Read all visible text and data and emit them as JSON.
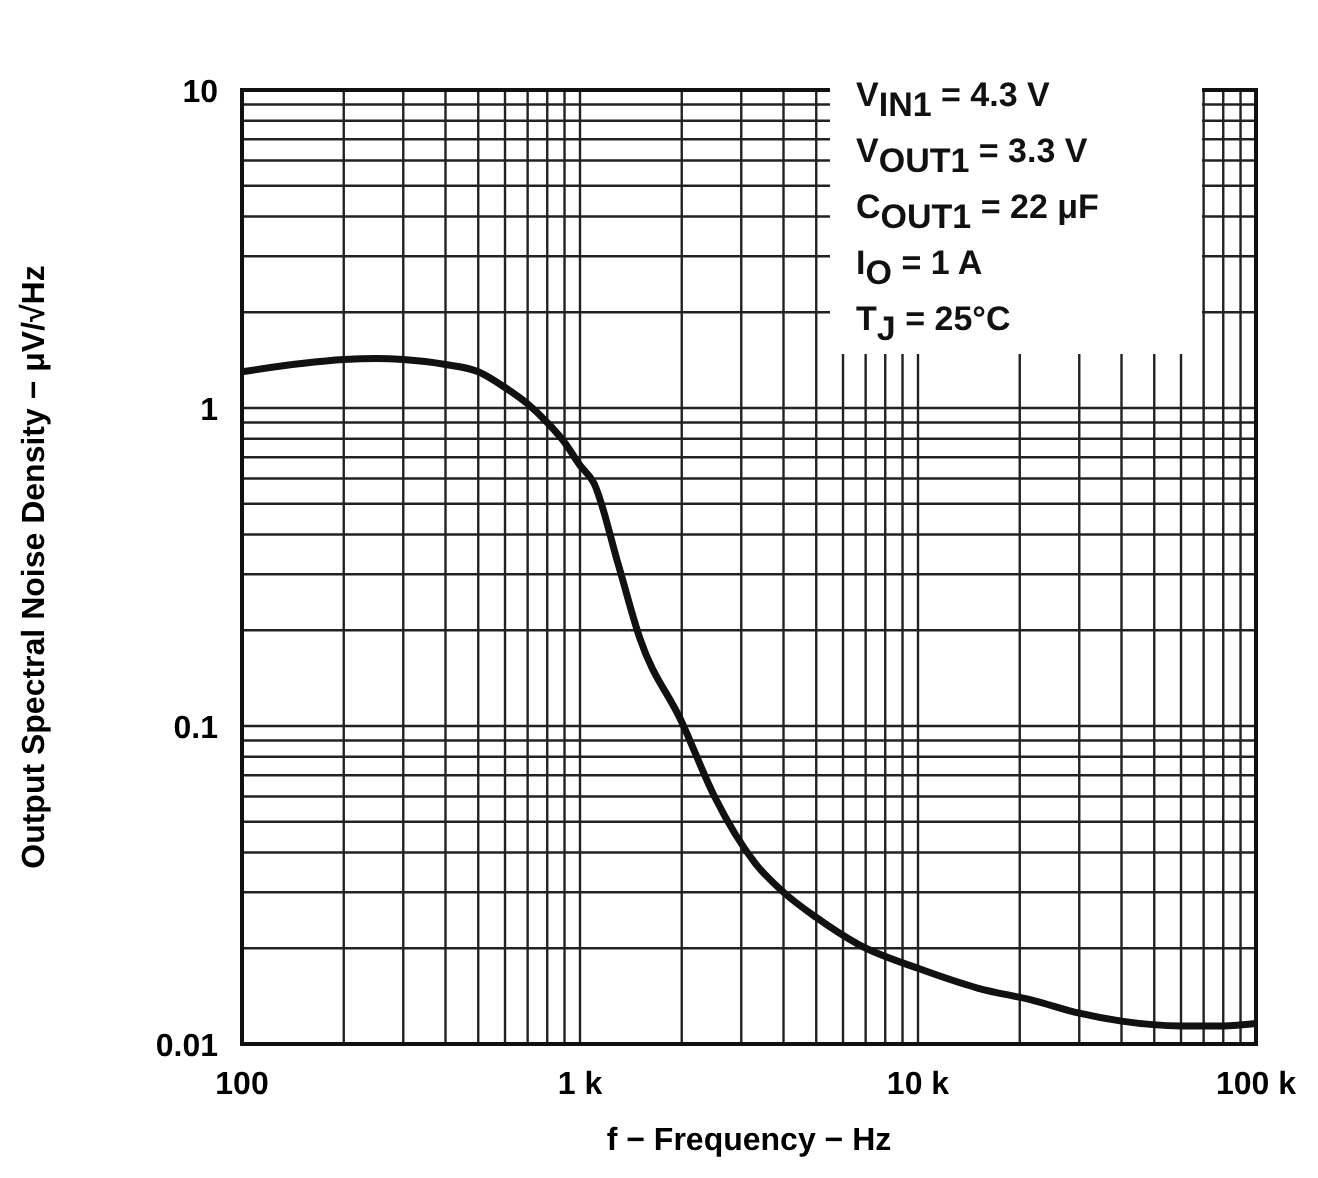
{
  "chart_data": {
    "type": "line",
    "xlabel": "f − Frequency − Hz",
    "ylabel": "Output Spectral Noise Density  − μV/√Hz",
    "log": "xy",
    "grid": true,
    "xlim": [
      100,
      100000
    ],
    "ylim": [
      0.01,
      10
    ],
    "xticks": [
      100,
      {
        "value": 200,
        "label": null
      },
      {
        "value": 300,
        "label": null
      },
      {
        "value": 400,
        "label": null
      },
      {
        "value": 500,
        "label": null
      },
      {
        "value": 600,
        "label": null
      },
      {
        "value": 700,
        "label": null
      },
      {
        "value": 800,
        "label": null
      },
      {
        "value": 900,
        "label": null
      },
      {
        "value": 1000,
        "label": "1 k"
      },
      {
        "value": 2000,
        "label": null
      },
      {
        "value": 3000,
        "label": null
      },
      {
        "value": 4000,
        "label": null
      },
      {
        "value": 5000,
        "label": null
      },
      {
        "value": 6000,
        "label": null
      },
      {
        "value": 7000,
        "label": null
      },
      {
        "value": 8000,
        "label": null
      },
      {
        "value": 9000,
        "label": null
      },
      {
        "value": 10000,
        "label": "10 k"
      },
      {
        "value": 20000,
        "label": null
      },
      {
        "value": 30000,
        "label": null
      },
      {
        "value": 40000,
        "label": null
      },
      {
        "value": 50000,
        "label": null
      },
      {
        "value": 60000,
        "label": null
      },
      {
        "value": 70000,
        "label": null
      },
      {
        "value": 80000,
        "label": null
      },
      {
        "value": 90000,
        "label": null
      },
      {
        "value": 100000,
        "label": "100 k"
      }
    ],
    "yticks": [
      0.01,
      {
        "value": 0.02,
        "label": null
      },
      {
        "value": 0.03,
        "label": null
      },
      {
        "value": 0.04,
        "label": null
      },
      {
        "value": 0.05,
        "label": null
      },
      {
        "value": 0.06,
        "label": null
      },
      {
        "value": 0.07,
        "label": null
      },
      {
        "value": 0.08,
        "label": null
      },
      {
        "value": 0.09,
        "label": null
      },
      0.1,
      {
        "value": 0.2,
        "label": null
      },
      {
        "value": 0.3,
        "label": null
      },
      {
        "value": 0.4,
        "label": null
      },
      {
        "value": 0.5,
        "label": null
      },
      {
        "value": 0.6,
        "label": null
      },
      {
        "value": 0.7,
        "label": null
      },
      {
        "value": 0.8,
        "label": null
      },
      {
        "value": 0.9,
        "label": null
      },
      1,
      {
        "value": 2,
        "label": null
      },
      {
        "value": 3,
        "label": null
      },
      {
        "value": 4,
        "label": null
      },
      {
        "value": 5,
        "label": null
      },
      {
        "value": 6,
        "label": null
      },
      {
        "value": 7,
        "label": null
      },
      {
        "value": 8,
        "label": null
      },
      {
        "value": 9,
        "label": null
      },
      10
    ],
    "x": [
      100,
      150,
      200,
      250,
      300,
      400,
      500,
      600,
      700,
      800,
      900,
      1000,
      1100,
      1300,
      1500,
      2000,
      2500,
      3300,
      4000,
      5000,
      6700,
      10000,
      15000,
      22000,
      30000,
      40000,
      60000,
      80000,
      100000
    ],
    "series": [
      {
        "color": "#111111",
        "values": [
          1.3,
          1.38,
          1.42,
          1.43,
          1.42,
          1.37,
          1.3,
          1.16,
          1.03,
          0.9,
          0.78,
          0.66,
          0.58,
          0.32,
          0.19,
          0.103,
          0.06,
          0.037,
          0.03,
          0.025,
          0.0205,
          0.0173,
          0.015,
          0.0137,
          0.0125,
          0.0118,
          0.0114,
          0.0114,
          0.0116
        ]
      }
    ],
    "annotations": [
      "V$_{IN1}$ = 4.3 V",
      "V$_{OUT1}$ = 3.3 V",
      "C$_{OUT1}$ = 22 μF",
      "I$_{O}$ = 1 A",
      "T$_{J}$ = 25°C"
    ]
  }
}
